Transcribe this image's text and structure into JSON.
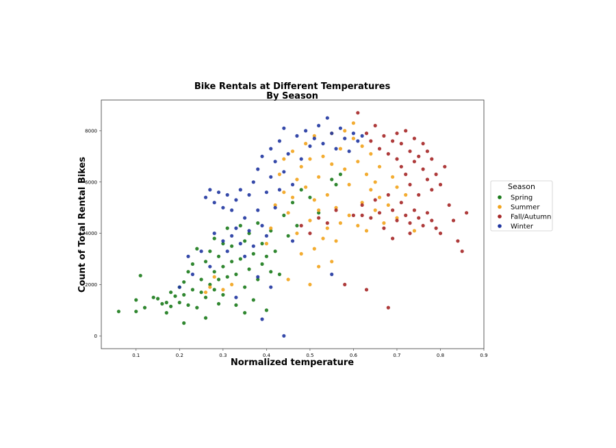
{
  "chart_data": {
    "type": "scatter",
    "title": "Bike Rentals at Different Temperatures",
    "subtitle": "By Season",
    "xlabel": "Normalized temperature",
    "ylabel": "Count of Total Rental Bikes",
    "xlim": [
      0.02,
      0.9
    ],
    "ylim": [
      -500,
      9200
    ],
    "xticks": [
      0.1,
      0.2,
      0.3,
      0.4,
      0.5,
      0.6,
      0.7,
      0.8,
      0.9
    ],
    "yticks": [
      0,
      2000,
      4000,
      6000,
      8000
    ],
    "grid": false,
    "legend": {
      "title": "Season",
      "placement": "right-outside"
    },
    "series": [
      {
        "name": "Spring",
        "color": "#1a7a1a",
        "points": [
          [
            0.06,
            950
          ],
          [
            0.1,
            950
          ],
          [
            0.1,
            1400
          ],
          [
            0.11,
            2350
          ],
          [
            0.12,
            1100
          ],
          [
            0.14,
            1500
          ],
          [
            0.15,
            1450
          ],
          [
            0.16,
            1250
          ],
          [
            0.17,
            1300
          ],
          [
            0.18,
            1150
          ],
          [
            0.18,
            1700
          ],
          [
            0.19,
            1550
          ],
          [
            0.2,
            1300
          ],
          [
            0.2,
            1900
          ],
          [
            0.21,
            1600
          ],
          [
            0.21,
            2100
          ],
          [
            0.22,
            1200
          ],
          [
            0.22,
            2500
          ],
          [
            0.23,
            1800
          ],
          [
            0.23,
            2800
          ],
          [
            0.24,
            1100
          ],
          [
            0.24,
            3400
          ],
          [
            0.25,
            1700
          ],
          [
            0.25,
            2200
          ],
          [
            0.26,
            1500
          ],
          [
            0.26,
            2900
          ],
          [
            0.27,
            2000
          ],
          [
            0.27,
            3300
          ],
          [
            0.28,
            1800
          ],
          [
            0.28,
            2500
          ],
          [
            0.28,
            3800
          ],
          [
            0.29,
            2200
          ],
          [
            0.29,
            3100
          ],
          [
            0.3,
            1600
          ],
          [
            0.3,
            2700
          ],
          [
            0.3,
            3600
          ],
          [
            0.31,
            2300
          ],
          [
            0.31,
            4200
          ],
          [
            0.32,
            2900
          ],
          [
            0.32,
            3500
          ],
          [
            0.33,
            1200
          ],
          [
            0.33,
            2400
          ],
          [
            0.34,
            3000
          ],
          [
            0.34,
            4300
          ],
          [
            0.35,
            1900
          ],
          [
            0.35,
            3700
          ],
          [
            0.36,
            2600
          ],
          [
            0.36,
            4000
          ],
          [
            0.37,
            1400
          ],
          [
            0.37,
            3200
          ],
          [
            0.38,
            2200
          ],
          [
            0.38,
            4400
          ],
          [
            0.39,
            2800
          ],
          [
            0.39,
            3600
          ],
          [
            0.4,
            1000
          ],
          [
            0.4,
            3100
          ],
          [
            0.41,
            2500
          ],
          [
            0.41,
            4100
          ],
          [
            0.42,
            3300
          ],
          [
            0.43,
            2400
          ],
          [
            0.44,
            4700
          ],
          [
            0.45,
            3900
          ],
          [
            0.46,
            5200
          ],
          [
            0.47,
            4300
          ],
          [
            0.48,
            5700
          ],
          [
            0.5,
            5400
          ],
          [
            0.55,
            6100
          ],
          [
            0.56,
            5900
          ],
          [
            0.52,
            4800
          ],
          [
            0.57,
            6300
          ],
          [
            0.21,
            500
          ],
          [
            0.26,
            700
          ],
          [
            0.35,
            900
          ],
          [
            0.29,
            1250
          ],
          [
            0.17,
            900
          ]
        ]
      },
      {
        "name": "Summer",
        "color": "#f2a31b",
        "points": [
          [
            0.26,
            1700
          ],
          [
            0.27,
            1900
          ],
          [
            0.28,
            2300
          ],
          [
            0.3,
            1800
          ],
          [
            0.32,
            2000
          ],
          [
            0.4,
            3600
          ],
          [
            0.41,
            4200
          ],
          [
            0.42,
            5100
          ],
          [
            0.43,
            6300
          ],
          [
            0.44,
            5600
          ],
          [
            0.44,
            6900
          ],
          [
            0.45,
            4800
          ],
          [
            0.46,
            5400
          ],
          [
            0.46,
            7200
          ],
          [
            0.47,
            4000
          ],
          [
            0.47,
            6100
          ],
          [
            0.48,
            3200
          ],
          [
            0.48,
            6600
          ],
          [
            0.49,
            5800
          ],
          [
            0.49,
            7500
          ],
          [
            0.5,
            2000
          ],
          [
            0.5,
            4500
          ],
          [
            0.5,
            6900
          ],
          [
            0.51,
            3400
          ],
          [
            0.51,
            5300
          ],
          [
            0.51,
            7800
          ],
          [
            0.52,
            4900
          ],
          [
            0.52,
            6200
          ],
          [
            0.53,
            3800
          ],
          [
            0.53,
            7000
          ],
          [
            0.54,
            4200
          ],
          [
            0.54,
            5500
          ],
          [
            0.55,
            6700
          ],
          [
            0.55,
            7900
          ],
          [
            0.56,
            3700
          ],
          [
            0.56,
            5000
          ],
          [
            0.57,
            4400
          ],
          [
            0.57,
            7300
          ],
          [
            0.58,
            6500
          ],
          [
            0.58,
            8000
          ],
          [
            0.59,
            4700
          ],
          [
            0.59,
            5900
          ],
          [
            0.6,
            7700
          ],
          [
            0.6,
            8300
          ],
          [
            0.61,
            4300
          ],
          [
            0.61,
            6800
          ],
          [
            0.62,
            5200
          ],
          [
            0.62,
            7400
          ],
          [
            0.63,
            4100
          ],
          [
            0.63,
            6300
          ],
          [
            0.64,
            5700
          ],
          [
            0.64,
            7100
          ],
          [
            0.65,
            4900
          ],
          [
            0.65,
            6000
          ],
          [
            0.66,
            5400
          ],
          [
            0.66,
            6600
          ],
          [
            0.67,
            4400
          ],
          [
            0.68,
            5100
          ],
          [
            0.69,
            6200
          ],
          [
            0.7,
            5800
          ],
          [
            0.7,
            4600
          ],
          [
            0.72,
            5500
          ],
          [
            0.74,
            4100
          ],
          [
            0.52,
            2700
          ],
          [
            0.55,
            2900
          ],
          [
            0.45,
            2200
          ]
        ]
      },
      {
        "name": "Fall/Autumn",
        "color": "#a52626",
        "points": [
          [
            0.48,
            4300
          ],
          [
            0.5,
            4000
          ],
          [
            0.52,
            4600
          ],
          [
            0.54,
            4400
          ],
          [
            0.56,
            4900
          ],
          [
            0.58,
            2000
          ],
          [
            0.6,
            4700
          ],
          [
            0.61,
            8700
          ],
          [
            0.62,
            5100
          ],
          [
            0.63,
            7900
          ],
          [
            0.63,
            1800
          ],
          [
            0.64,
            4600
          ],
          [
            0.64,
            7600
          ],
          [
            0.65,
            5300
          ],
          [
            0.65,
            8200
          ],
          [
            0.66,
            4800
          ],
          [
            0.66,
            7300
          ],
          [
            0.67,
            4200
          ],
          [
            0.67,
            7800
          ],
          [
            0.68,
            1100
          ],
          [
            0.68,
            5500
          ],
          [
            0.68,
            7100
          ],
          [
            0.69,
            4900
          ],
          [
            0.69,
            7600
          ],
          [
            0.7,
            4500
          ],
          [
            0.7,
            6900
          ],
          [
            0.7,
            7900
          ],
          [
            0.71,
            5200
          ],
          [
            0.71,
            6600
          ],
          [
            0.71,
            7500
          ],
          [
            0.72,
            4700
          ],
          [
            0.72,
            6300
          ],
          [
            0.72,
            8000
          ],
          [
            0.73,
            4400
          ],
          [
            0.73,
            5900
          ],
          [
            0.73,
            7200
          ],
          [
            0.74,
            4900
          ],
          [
            0.74,
            6800
          ],
          [
            0.74,
            7700
          ],
          [
            0.75,
            4600
          ],
          [
            0.75,
            5500
          ],
          [
            0.75,
            7000
          ],
          [
            0.76,
            4300
          ],
          [
            0.76,
            6500
          ],
          [
            0.76,
            7500
          ],
          [
            0.77,
            4800
          ],
          [
            0.77,
            6100
          ],
          [
            0.77,
            7200
          ],
          [
            0.78,
            4500
          ],
          [
            0.78,
            5700
          ],
          [
            0.78,
            6900
          ],
          [
            0.79,
            4200
          ],
          [
            0.79,
            6300
          ],
          [
            0.8,
            5900
          ],
          [
            0.8,
            4000
          ],
          [
            0.81,
            6600
          ],
          [
            0.82,
            5100
          ],
          [
            0.83,
            4500
          ],
          [
            0.84,
            3700
          ],
          [
            0.85,
            3300
          ],
          [
            0.86,
            4800
          ],
          [
            0.62,
            4700
          ],
          [
            0.69,
            3800
          ],
          [
            0.73,
            4000
          ]
        ]
      },
      {
        "name": "Winter",
        "color": "#1f35a0",
        "points": [
          [
            0.2,
            1900
          ],
          [
            0.22,
            3100
          ],
          [
            0.23,
            2400
          ],
          [
            0.25,
            3300
          ],
          [
            0.26,
            5400
          ],
          [
            0.27,
            5700
          ],
          [
            0.27,
            2700
          ],
          [
            0.28,
            5200
          ],
          [
            0.28,
            4000
          ],
          [
            0.29,
            5600
          ],
          [
            0.3,
            3700
          ],
          [
            0.3,
            5000
          ],
          [
            0.31,
            5500
          ],
          [
            0.31,
            3300
          ],
          [
            0.32,
            4900
          ],
          [
            0.32,
            3900
          ],
          [
            0.33,
            5300
          ],
          [
            0.33,
            4200
          ],
          [
            0.34,
            3600
          ],
          [
            0.34,
            5700
          ],
          [
            0.35,
            4600
          ],
          [
            0.35,
            3100
          ],
          [
            0.36,
            4100
          ],
          [
            0.36,
            5500
          ],
          [
            0.37,
            3500
          ],
          [
            0.37,
            6000
          ],
          [
            0.38,
            4900
          ],
          [
            0.38,
            6500
          ],
          [
            0.39,
            4300
          ],
          [
            0.39,
            7000
          ],
          [
            0.4,
            5600
          ],
          [
            0.4,
            3900
          ],
          [
            0.41,
            6200
          ],
          [
            0.41,
            7300
          ],
          [
            0.42,
            5000
          ],
          [
            0.42,
            6800
          ],
          [
            0.43,
            7600
          ],
          [
            0.43,
            5700
          ],
          [
            0.44,
            6400
          ],
          [
            0.44,
            8100
          ],
          [
            0.45,
            7100
          ],
          [
            0.46,
            5900
          ],
          [
            0.47,
            7800
          ],
          [
            0.48,
            6900
          ],
          [
            0.49,
            8000
          ],
          [
            0.5,
            7400
          ],
          [
            0.51,
            7700
          ],
          [
            0.52,
            8200
          ],
          [
            0.53,
            7500
          ],
          [
            0.54,
            8500
          ],
          [
            0.55,
            7900
          ],
          [
            0.56,
            7300
          ],
          [
            0.57,
            8100
          ],
          [
            0.58,
            7700
          ],
          [
            0.59,
            7200
          ],
          [
            0.6,
            7900
          ],
          [
            0.61,
            7600
          ],
          [
            0.62,
            7800
          ],
          [
            0.38,
            2300
          ],
          [
            0.41,
            1900
          ],
          [
            0.44,
            0
          ],
          [
            0.39,
            650
          ],
          [
            0.33,
            1500
          ],
          [
            0.55,
            2400
          ],
          [
            0.46,
            3700
          ]
        ]
      }
    ]
  }
}
